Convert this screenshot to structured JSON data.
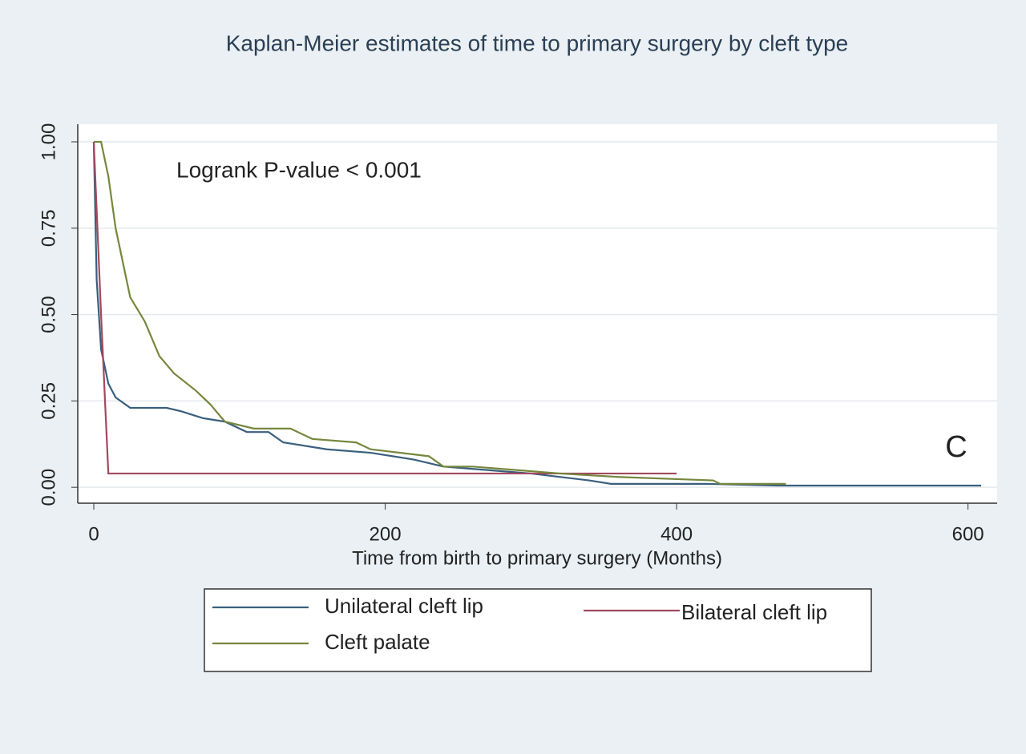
{
  "chart_data": {
    "type": "line",
    "title": "Kaplan-Meier  estimates of time to primary surgery by cleft type",
    "x_label": "Time from birth to primary surgery (Months)",
    "annotations": [
      "Logrank P-value < 0.001",
      "C"
    ],
    "xlim": [
      -11,
      620
    ],
    "ylim": [
      -0.046,
      1.051
    ],
    "xticks": [
      0,
      200,
      400,
      600
    ],
    "yticks": [
      {
        "value": 0,
        "label": "0.00"
      },
      {
        "value": 0.25,
        "label": "0.25"
      },
      {
        "value": 0.5,
        "label": "0.50"
      },
      {
        "value": 0.75,
        "label": "0.75"
      },
      {
        "value": 1,
        "label": "1.00"
      }
    ],
    "grid": true,
    "series": [
      {
        "name": "Unilateral cleft lip",
        "color": "#3a5f7d",
        "x": [
          0,
          2,
          5,
          10,
          15,
          25,
          50,
          60,
          75,
          90,
          105,
          120,
          130,
          160,
          190,
          220,
          240,
          270,
          300,
          340,
          355,
          420,
          470,
          609
        ],
        "values": [
          1,
          0.6,
          0.4,
          0.3,
          0.26,
          0.23,
          0.23,
          0.22,
          0.2,
          0.19,
          0.16,
          0.16,
          0.13,
          0.11,
          0.1,
          0.08,
          0.06,
          0.05,
          0.04,
          0.02,
          0.01,
          0.01,
          0.005,
          0.005
        ]
      },
      {
        "name": "Bilateral cleft lip",
        "color": "#a3485e",
        "x": [
          0,
          5,
          10,
          400
        ],
        "values": [
          1,
          0.5,
          0.04,
          0.04
        ]
      },
      {
        "name": "Cleft palate",
        "color": "#76873e",
        "x": [
          0,
          5,
          10,
          15,
          20,
          25,
          35,
          45,
          55,
          70,
          80,
          90,
          110,
          135,
          150,
          180,
          190,
          230,
          240,
          260,
          290,
          320,
          360,
          425,
          430,
          475
        ],
        "values": [
          1,
          1,
          0.9,
          0.75,
          0.65,
          0.55,
          0.48,
          0.38,
          0.33,
          0.28,
          0.24,
          0.19,
          0.17,
          0.17,
          0.14,
          0.13,
          0.11,
          0.09,
          0.06,
          0.06,
          0.05,
          0.04,
          0.03,
          0.02,
          0.01,
          0.01
        ]
      }
    ]
  }
}
